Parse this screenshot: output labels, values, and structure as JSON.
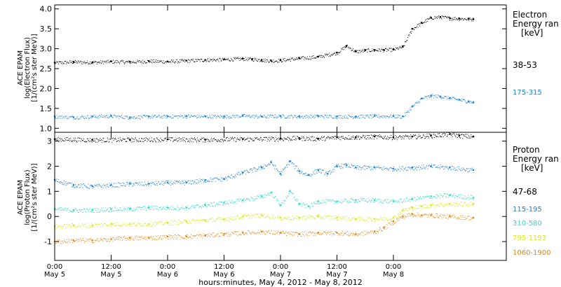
{
  "chart_data": [
    {
      "type": "scatter",
      "ylabel_lines": [
        "ACE EPAM",
        "log(Electron Flux)",
        "[1/(cm²s ster MeV)]"
      ],
      "yticks": [
        "4.0",
        "3.5",
        "3.0",
        "2.5",
        "2.0",
        "1.5",
        "1.0"
      ],
      "ylim": [
        0.9,
        4.1
      ],
      "xlim": [
        0,
        96
      ],
      "legend_title_lines": [
        "Electron",
        "Energy ran"
      ],
      "legend_unit": "[keV]",
      "series": [
        {
          "name": "38-53",
          "color": "#000000",
          "x": [
            0,
            4,
            8,
            12,
            16,
            20,
            24,
            28,
            32,
            36,
            40,
            42,
            44,
            46,
            48,
            52,
            56,
            60,
            62,
            64,
            66,
            68,
            70,
            72,
            74,
            76,
            78,
            80,
            82,
            84,
            86,
            88,
            89
          ],
          "y": [
            2.65,
            2.67,
            2.66,
            2.68,
            2.67,
            2.69,
            2.68,
            2.7,
            2.72,
            2.73,
            2.75,
            2.74,
            2.72,
            2.7,
            2.71,
            2.76,
            2.8,
            2.9,
            3.07,
            2.93,
            2.96,
            2.97,
            2.97,
            2.98,
            3.05,
            3.5,
            3.65,
            3.78,
            3.8,
            3.77,
            3.76,
            3.75,
            3.74
          ]
        },
        {
          "name": "175-315",
          "color": "#1f7fd0",
          "x": [
            0,
            4,
            8,
            12,
            16,
            20,
            24,
            28,
            32,
            36,
            40,
            44,
            48,
            52,
            56,
            60,
            64,
            68,
            72,
            74,
            76,
            78,
            80,
            82,
            84,
            86,
            88,
            89
          ],
          "y": [
            1.3,
            1.28,
            1.3,
            1.31,
            1.28,
            1.3,
            1.3,
            1.31,
            1.3,
            1.3,
            1.32,
            1.3,
            1.31,
            1.3,
            1.31,
            1.3,
            1.3,
            1.31,
            1.31,
            1.3,
            1.55,
            1.75,
            1.82,
            1.8,
            1.76,
            1.72,
            1.68,
            1.65
          ]
        }
      ]
    },
    {
      "type": "scatter",
      "ylabel_lines": [
        "ACE EPAM",
        "log(Proton Flux)",
        "[1/(cm²s ster MeV)]"
      ],
      "yticks": [
        "3",
        "2",
        "1",
        "0",
        "-1"
      ],
      "ylim": [
        -1.75,
        3.35
      ],
      "xlim": [
        0,
        96
      ],
      "legend_title_lines": [
        "Proton",
        "Energy ran"
      ],
      "legend_unit": "[keV]",
      "series": [
        {
          "name": "47-68",
          "color": "#000000",
          "x": [
            0,
            8,
            16,
            24,
            32,
            40,
            48,
            52,
            56,
            60,
            64,
            68,
            72,
            76,
            80,
            84,
            86,
            89
          ],
          "y": [
            3.08,
            3.05,
            3.06,
            3.07,
            3.06,
            3.08,
            3.1,
            3.12,
            3.1,
            3.15,
            3.16,
            3.18,
            3.15,
            3.18,
            3.22,
            3.28,
            3.22,
            3.18
          ]
        },
        {
          "name": "115-195",
          "color": "#1f7fd0",
          "x": [
            0,
            4,
            8,
            12,
            16,
            20,
            24,
            28,
            32,
            36,
            40,
            44,
            46,
            48,
            50,
            52,
            54,
            56,
            58,
            60,
            62,
            64,
            68,
            72,
            76,
            80,
            84,
            89
          ],
          "y": [
            1.45,
            1.25,
            1.2,
            1.25,
            1.3,
            1.3,
            1.35,
            1.35,
            1.45,
            1.5,
            1.75,
            1.95,
            2.15,
            1.7,
            2.2,
            1.8,
            1.65,
            1.85,
            1.7,
            2.0,
            2.05,
            1.95,
            1.95,
            1.9,
            1.95,
            2.0,
            1.95,
            1.85
          ]
        },
        {
          "name": "310-580",
          "color": "#30d8c8",
          "x": [
            0,
            4,
            8,
            12,
            16,
            20,
            24,
            28,
            32,
            36,
            40,
            44,
            46,
            48,
            50,
            52,
            54,
            56,
            60,
            64,
            68,
            72,
            76,
            80,
            84,
            89
          ],
          "y": [
            0.3,
            0.25,
            0.25,
            0.3,
            0.3,
            0.35,
            0.35,
            0.35,
            0.45,
            0.55,
            0.65,
            0.8,
            0.95,
            0.45,
            1.0,
            0.5,
            0.4,
            0.6,
            0.6,
            0.65,
            0.65,
            0.6,
            0.7,
            0.8,
            0.85,
            0.75
          ]
        },
        {
          "name": "795-1193",
          "color": "#d8e818",
          "x": [
            0,
            4,
            8,
            12,
            16,
            20,
            24,
            28,
            32,
            36,
            40,
            44,
            48,
            52,
            56,
            60,
            64,
            68,
            72,
            74,
            76,
            78,
            80,
            84,
            89
          ],
          "y": [
            -0.4,
            -0.35,
            -0.35,
            -0.3,
            -0.3,
            -0.3,
            -0.25,
            -0.2,
            -0.15,
            -0.1,
            0.0,
            0.05,
            -0.05,
            -0.05,
            0.0,
            -0.05,
            -0.1,
            -0.1,
            -0.05,
            0.25,
            0.35,
            0.4,
            0.45,
            0.5,
            0.5
          ]
        },
        {
          "name": "1060-1900",
          "color": "#e08818",
          "x": [
            0,
            4,
            8,
            12,
            16,
            20,
            24,
            28,
            32,
            36,
            40,
            44,
            48,
            52,
            56,
            60,
            64,
            68,
            70,
            72,
            74,
            76,
            78,
            80,
            84,
            89
          ],
          "y": [
            -1.0,
            -0.95,
            -0.95,
            -0.9,
            -0.85,
            -0.85,
            -0.8,
            -0.8,
            -0.75,
            -0.7,
            -0.65,
            -0.6,
            -0.65,
            -0.7,
            -0.65,
            -0.65,
            -0.7,
            -0.6,
            -0.45,
            -0.2,
            0.0,
            0.1,
            0.05,
            0.05,
            0.0,
            -0.05
          ]
        }
      ]
    }
  ],
  "xaxis": {
    "ticks": [
      {
        "h": 0,
        "time": "0:00",
        "date": "May 5"
      },
      {
        "h": 12,
        "time": "12:00",
        "date": "May 5"
      },
      {
        "h": 24,
        "time": "0:00",
        "date": "May 6"
      },
      {
        "h": 36,
        "time": "12:00",
        "date": "May 6"
      },
      {
        "h": 48,
        "time": "0:00",
        "date": "May 7"
      },
      {
        "h": 60,
        "time": "12:00",
        "date": "May 7"
      },
      {
        "h": 72,
        "time": "0:00",
        "date": "May 8"
      }
    ],
    "label": "hours:minutes, May  4, 2012 - May  8, 2012"
  }
}
